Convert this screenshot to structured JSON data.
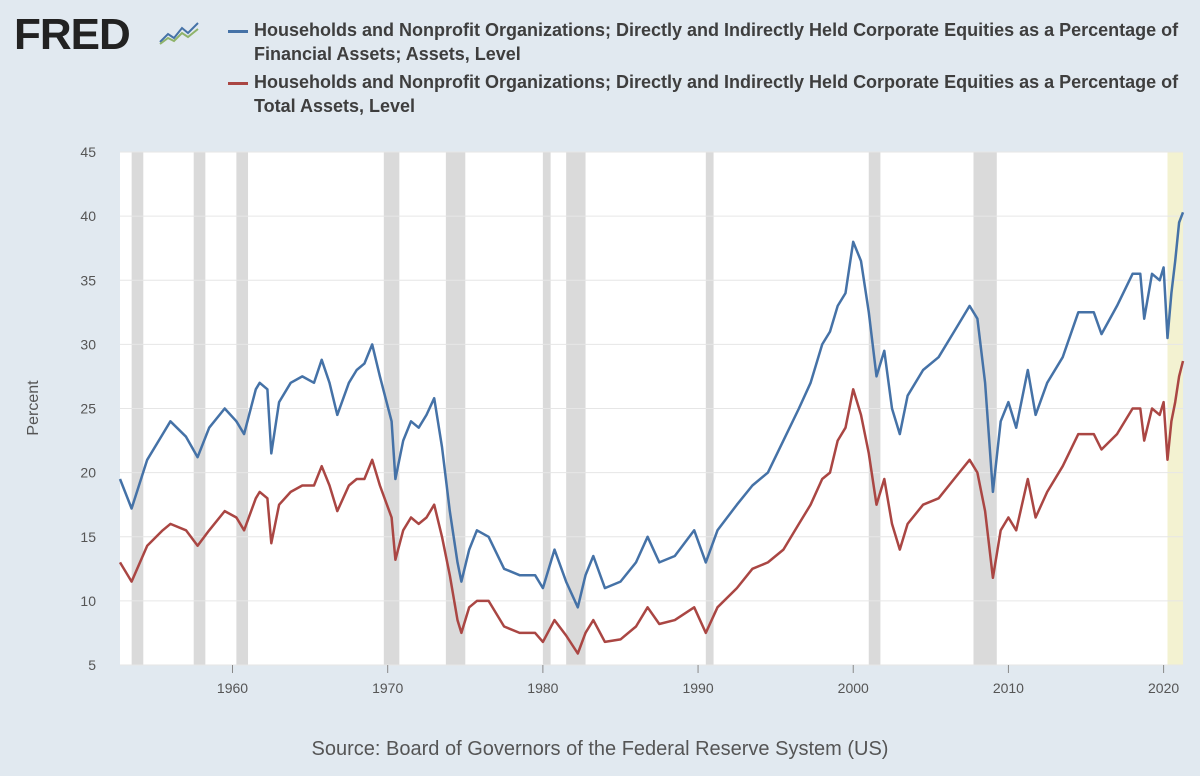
{
  "logo": {
    "text": "FRED"
  },
  "legend": [
    {
      "text": "Households and Nonprofit Organizations; Directly and Indirectly Held Corporate Equities as a Percentage of Financial Assets; Assets, Level",
      "color": "#4572a7"
    },
    {
      "text": "Households and Nonprofit Organizations; Directly and Indirectly Held Corporate Equities as a Percentage of Total Assets, Level",
      "color": "#aa4643"
    }
  ],
  "source": "Source: Board of Governors of the Federal Reserve System (US)",
  "chart_data": {
    "type": "line",
    "ylabel": "Percent",
    "xlim": [
      1952.75,
      2021.25
    ],
    "ylim": [
      5,
      45
    ],
    "yticks": [
      5,
      10,
      15,
      20,
      25,
      30,
      35,
      40,
      45
    ],
    "xticks": [
      1960,
      1970,
      1980,
      1990,
      2000,
      2010,
      2020
    ],
    "grid": true,
    "recessions": [
      [
        1953.5,
        1954.25
      ],
      [
        1957.5,
        1958.25
      ],
      [
        1960.25,
        1961.0
      ],
      [
        1969.75,
        1970.75
      ],
      [
        1973.75,
        1975.0
      ],
      [
        1980.0,
        1980.5
      ],
      [
        1981.5,
        1982.75
      ],
      [
        1990.5,
        1991.0
      ],
      [
        2001.0,
        2001.75
      ],
      [
        2007.75,
        2009.25
      ]
    ],
    "highlight": [
      2020.25,
      2021.25
    ],
    "highlight_color": "#f3f2d1",
    "recession_color": "#dadada",
    "series": [
      {
        "name": "Households and Nonprofit Organizations; Directly and Indirectly Held Corporate Equities as a Percentage of Financial Assets; Assets, Level",
        "color": "#4572a7",
        "points": [
          [
            1952.75,
            19.5
          ],
          [
            1953.5,
            17.2
          ],
          [
            1954.5,
            21.0
          ],
          [
            1955.5,
            23.0
          ],
          [
            1956.0,
            24.0
          ],
          [
            1957.0,
            22.8
          ],
          [
            1957.75,
            21.2
          ],
          [
            1958.5,
            23.5
          ],
          [
            1959.5,
            25.0
          ],
          [
            1960.25,
            24.0
          ],
          [
            1960.75,
            23.0
          ],
          [
            1961.5,
            26.5
          ],
          [
            1961.75,
            27.0
          ],
          [
            1962.25,
            26.5
          ],
          [
            1962.5,
            21.5
          ],
          [
            1963.0,
            25.5
          ],
          [
            1963.75,
            27.0
          ],
          [
            1964.5,
            27.5
          ],
          [
            1965.25,
            27.0
          ],
          [
            1965.75,
            28.8
          ],
          [
            1966.25,
            27.0
          ],
          [
            1966.75,
            24.5
          ],
          [
            1967.5,
            27.0
          ],
          [
            1968.0,
            28.0
          ],
          [
            1968.5,
            28.5
          ],
          [
            1969.0,
            30.0
          ],
          [
            1969.5,
            27.5
          ],
          [
            1970.25,
            24.0
          ],
          [
            1970.5,
            19.5
          ],
          [
            1971.0,
            22.5
          ],
          [
            1971.5,
            24.0
          ],
          [
            1972.0,
            23.5
          ],
          [
            1972.5,
            24.5
          ],
          [
            1973.0,
            25.8
          ],
          [
            1973.5,
            22.0
          ],
          [
            1974.0,
            17.0
          ],
          [
            1974.5,
            13.0
          ],
          [
            1974.75,
            11.5
          ],
          [
            1975.25,
            14.0
          ],
          [
            1975.75,
            15.5
          ],
          [
            1976.5,
            15.0
          ],
          [
            1977.5,
            12.5
          ],
          [
            1978.5,
            12.0
          ],
          [
            1979.5,
            12.0
          ],
          [
            1980.0,
            11.0
          ],
          [
            1980.75,
            14.0
          ],
          [
            1981.5,
            11.5
          ],
          [
            1982.25,
            9.5
          ],
          [
            1982.75,
            12.0
          ],
          [
            1983.25,
            13.5
          ],
          [
            1984.0,
            11.0
          ],
          [
            1985.0,
            11.5
          ],
          [
            1986.0,
            13.0
          ],
          [
            1986.75,
            15.0
          ],
          [
            1987.5,
            13.0
          ],
          [
            1988.5,
            13.5
          ],
          [
            1989.75,
            15.5
          ],
          [
            1990.5,
            13.0
          ],
          [
            1991.25,
            15.5
          ],
          [
            1992.5,
            17.5
          ],
          [
            1993.5,
            19.0
          ],
          [
            1994.5,
            20.0
          ],
          [
            1995.5,
            22.5
          ],
          [
            1996.5,
            25.0
          ],
          [
            1997.25,
            27.0
          ],
          [
            1998.0,
            30.0
          ],
          [
            1998.5,
            31.0
          ],
          [
            1999.0,
            33.0
          ],
          [
            1999.5,
            34.0
          ],
          [
            2000.0,
            38.0
          ],
          [
            2000.5,
            36.5
          ],
          [
            2001.0,
            32.5
          ],
          [
            2001.5,
            27.5
          ],
          [
            2002.0,
            29.5
          ],
          [
            2002.5,
            25.0
          ],
          [
            2003.0,
            23.0
          ],
          [
            2003.5,
            26.0
          ],
          [
            2004.5,
            28.0
          ],
          [
            2005.5,
            29.0
          ],
          [
            2006.5,
            31.0
          ],
          [
            2007.5,
            33.0
          ],
          [
            2008.0,
            32.0
          ],
          [
            2008.5,
            27.0
          ],
          [
            2009.0,
            18.5
          ],
          [
            2009.5,
            24.0
          ],
          [
            2010.0,
            25.5
          ],
          [
            2010.5,
            23.5
          ],
          [
            2011.25,
            28.0
          ],
          [
            2011.75,
            24.5
          ],
          [
            2012.5,
            27.0
          ],
          [
            2013.5,
            29.0
          ],
          [
            2014.5,
            32.5
          ],
          [
            2015.5,
            32.5
          ],
          [
            2016.0,
            30.8
          ],
          [
            2017.0,
            33.0
          ],
          [
            2018.0,
            35.5
          ],
          [
            2018.5,
            35.5
          ],
          [
            2018.75,
            32.0
          ],
          [
            2019.25,
            35.5
          ],
          [
            2019.75,
            35.0
          ],
          [
            2020.0,
            36.0
          ],
          [
            2020.25,
            30.5
          ],
          [
            2020.5,
            34.0
          ],
          [
            2020.75,
            36.5
          ],
          [
            2021.0,
            39.5
          ],
          [
            2021.25,
            40.3
          ]
        ]
      },
      {
        "name": "Households and Nonprofit Organizations; Directly and Indirectly Held Corporate Equities as a Percentage of Total Assets, Level",
        "color": "#aa4643",
        "points": [
          [
            1952.75,
            13.0
          ],
          [
            1953.5,
            11.5
          ],
          [
            1954.5,
            14.3
          ],
          [
            1955.5,
            15.5
          ],
          [
            1956.0,
            16.0
          ],
          [
            1957.0,
            15.5
          ],
          [
            1957.75,
            14.3
          ],
          [
            1958.5,
            15.5
          ],
          [
            1959.5,
            17.0
          ],
          [
            1960.25,
            16.5
          ],
          [
            1960.75,
            15.5
          ],
          [
            1961.5,
            18.0
          ],
          [
            1961.75,
            18.5
          ],
          [
            1962.25,
            18.0
          ],
          [
            1962.5,
            14.5
          ],
          [
            1963.0,
            17.5
          ],
          [
            1963.75,
            18.5
          ],
          [
            1964.5,
            19.0
          ],
          [
            1965.25,
            19.0
          ],
          [
            1965.75,
            20.5
          ],
          [
            1966.25,
            19.0
          ],
          [
            1966.75,
            17.0
          ],
          [
            1967.5,
            19.0
          ],
          [
            1968.0,
            19.5
          ],
          [
            1968.5,
            19.5
          ],
          [
            1969.0,
            21.0
          ],
          [
            1969.5,
            19.0
          ],
          [
            1970.25,
            16.5
          ],
          [
            1970.5,
            13.2
          ],
          [
            1971.0,
            15.5
          ],
          [
            1971.5,
            16.5
          ],
          [
            1972.0,
            16.0
          ],
          [
            1972.5,
            16.5
          ],
          [
            1973.0,
            17.5
          ],
          [
            1973.5,
            15.0
          ],
          [
            1974.0,
            12.0
          ],
          [
            1974.5,
            8.5
          ],
          [
            1974.75,
            7.5
          ],
          [
            1975.25,
            9.5
          ],
          [
            1975.75,
            10.0
          ],
          [
            1976.5,
            10.0
          ],
          [
            1977.5,
            8.0
          ],
          [
            1978.5,
            7.5
          ],
          [
            1979.5,
            7.5
          ],
          [
            1980.0,
            6.8
          ],
          [
            1980.75,
            8.5
          ],
          [
            1981.5,
            7.3
          ],
          [
            1982.25,
            5.9
          ],
          [
            1982.75,
            7.5
          ],
          [
            1983.25,
            8.5
          ],
          [
            1984.0,
            6.8
          ],
          [
            1985.0,
            7.0
          ],
          [
            1986.0,
            8.0
          ],
          [
            1986.75,
            9.5
          ],
          [
            1987.5,
            8.2
          ],
          [
            1988.5,
            8.5
          ],
          [
            1989.75,
            9.5
          ],
          [
            1990.5,
            7.5
          ],
          [
            1991.25,
            9.5
          ],
          [
            1992.5,
            11.0
          ],
          [
            1993.5,
            12.5
          ],
          [
            1994.5,
            13.0
          ],
          [
            1995.5,
            14.0
          ],
          [
            1996.5,
            16.0
          ],
          [
            1997.25,
            17.5
          ],
          [
            1998.0,
            19.5
          ],
          [
            1998.5,
            20.0
          ],
          [
            1999.0,
            22.5
          ],
          [
            1999.5,
            23.5
          ],
          [
            2000.0,
            26.5
          ],
          [
            2000.5,
            24.5
          ],
          [
            2001.0,
            21.5
          ],
          [
            2001.5,
            17.5
          ],
          [
            2002.0,
            19.5
          ],
          [
            2002.5,
            16.0
          ],
          [
            2003.0,
            14.0
          ],
          [
            2003.5,
            16.0
          ],
          [
            2004.5,
            17.5
          ],
          [
            2005.5,
            18.0
          ],
          [
            2006.5,
            19.5
          ],
          [
            2007.5,
            21.0
          ],
          [
            2008.0,
            20.0
          ],
          [
            2008.5,
            17.0
          ],
          [
            2009.0,
            11.8
          ],
          [
            2009.5,
            15.5
          ],
          [
            2010.0,
            16.5
          ],
          [
            2010.5,
            15.5
          ],
          [
            2011.25,
            19.5
          ],
          [
            2011.75,
            16.5
          ],
          [
            2012.5,
            18.5
          ],
          [
            2013.5,
            20.5
          ],
          [
            2014.5,
            23.0
          ],
          [
            2015.5,
            23.0
          ],
          [
            2016.0,
            21.8
          ],
          [
            2017.0,
            23.0
          ],
          [
            2018.0,
            25.0
          ],
          [
            2018.5,
            25.0
          ],
          [
            2018.75,
            22.5
          ],
          [
            2019.25,
            25.0
          ],
          [
            2019.75,
            24.5
          ],
          [
            2020.0,
            25.5
          ],
          [
            2020.25,
            21.0
          ],
          [
            2020.5,
            24.0
          ],
          [
            2020.75,
            25.5
          ],
          [
            2021.0,
            27.5
          ],
          [
            2021.25,
            28.7
          ]
        ]
      }
    ]
  }
}
